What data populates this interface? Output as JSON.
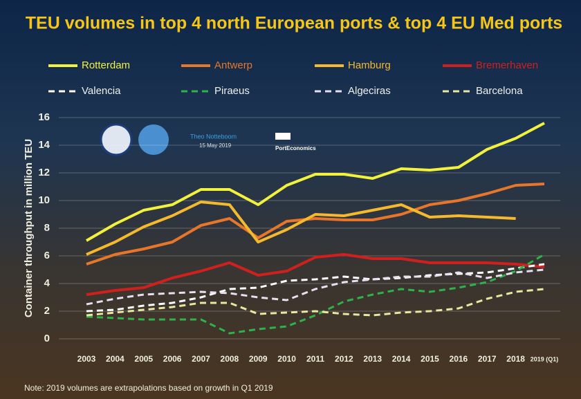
{
  "chart_data": {
    "type": "line",
    "title": "TEU volumes in top 4 north European ports & top 4 EU Med ports",
    "y_label": "Container throughput in million TEU",
    "note": "Note: 2019 volumes are extrapolations based on growth in Q1 2019",
    "annotations": [
      "Theo Notteboom",
      "15 May 2019",
      "PortEconomics"
    ],
    "categories": [
      "2003",
      "2004",
      "2005",
      "2006",
      "2007",
      "2008",
      "2009",
      "2010",
      "2011",
      "2012",
      "2013",
      "2014",
      "2015",
      "2016",
      "2017",
      "2018",
      "2019 (Q1)"
    ],
    "ylim": [
      0,
      16
    ],
    "yticks": [
      0,
      2,
      4,
      6,
      8,
      10,
      12,
      14,
      16
    ],
    "grid": true,
    "series": [
      {
        "name": "Rotterdam",
        "color": "#f2f23c",
        "style": "solid",
        "values": [
          7.1,
          8.3,
          9.3,
          9.7,
          10.8,
          10.8,
          9.7,
          11.1,
          11.9,
          11.9,
          11.6,
          12.3,
          12.2,
          12.4,
          13.7,
          14.5,
          15.6
        ]
      },
      {
        "name": "Antwerp",
        "color": "#e8762a",
        "style": "solid",
        "values": [
          5.4,
          6.1,
          6.5,
          7.0,
          8.2,
          8.7,
          7.3,
          8.5,
          8.7,
          8.6,
          8.6,
          9.0,
          9.7,
          10.0,
          10.5,
          11.1,
          11.2
        ]
      },
      {
        "name": "Hamburg",
        "color": "#f5b92e",
        "style": "solid",
        "values": [
          6.1,
          7.0,
          8.1,
          8.9,
          9.9,
          9.7,
          7.0,
          7.9,
          9.0,
          8.9,
          9.3,
          9.7,
          8.8,
          8.9,
          8.8,
          8.7,
          null
        ]
      },
      {
        "name": "Bremerhaven",
        "color": "#d0201e",
        "style": "solid",
        "values": [
          3.2,
          3.5,
          3.7,
          4.4,
          4.9,
          5.5,
          4.6,
          4.9,
          5.9,
          6.1,
          5.8,
          5.8,
          5.5,
          5.5,
          5.5,
          5.4,
          5.2
        ]
      },
      {
        "name": "Valencia",
        "color": "#ffffff",
        "style": "dashed",
        "values": [
          2.0,
          2.1,
          2.4,
          2.6,
          3.0,
          3.6,
          3.7,
          4.2,
          4.3,
          4.5,
          4.3,
          4.4,
          4.6,
          4.7,
          4.8,
          5.1,
          5.4
        ]
      },
      {
        "name": "Piraeus",
        "color": "#2db34a",
        "style": "dashed",
        "values": [
          1.6,
          1.5,
          1.4,
          1.4,
          1.4,
          0.4,
          0.7,
          0.9,
          1.7,
          2.7,
          3.2,
          3.6,
          3.4,
          3.7,
          4.1,
          4.9,
          6.1
        ]
      },
      {
        "name": "Algeciras",
        "color": "#e6e0f0",
        "style": "dashed",
        "values": [
          2.5,
          2.9,
          3.2,
          3.3,
          3.4,
          3.3,
          3.0,
          2.8,
          3.6,
          4.1,
          4.3,
          4.5,
          4.5,
          4.8,
          4.4,
          4.8,
          5.0
        ]
      },
      {
        "name": "Barcelona",
        "color": "#e8e8a0",
        "style": "dashed",
        "values": [
          1.7,
          1.9,
          2.1,
          2.3,
          2.6,
          2.6,
          1.8,
          1.9,
          2.0,
          1.8,
          1.7,
          1.9,
          2.0,
          2.2,
          2.9,
          3.4,
          3.6
        ]
      }
    ]
  }
}
